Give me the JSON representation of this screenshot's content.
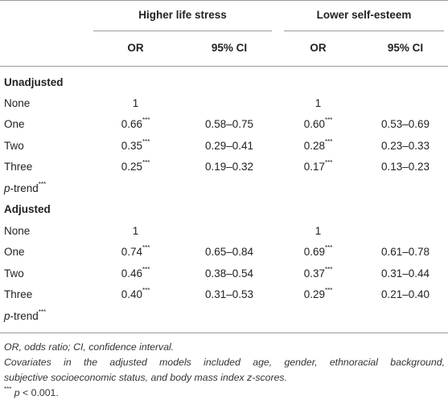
{
  "table": {
    "group_headers": [
      "Higher life stress",
      "Lower self-esteem"
    ],
    "col_headers": [
      "OR",
      "95% CI",
      "OR",
      "95% CI"
    ],
    "sections": [
      {
        "title": "Unadjusted",
        "rows": [
          {
            "label": "None",
            "or1": "1",
            "ci1": "",
            "or2": "1",
            "ci2": ""
          },
          {
            "label": "One",
            "or1": "0.66",
            "ci1": "0.58–0.75",
            "or2": "0.60",
            "ci2": "0.53–0.69"
          },
          {
            "label": "Two",
            "or1": "0.35",
            "ci1": "0.29–0.41",
            "or2": "0.28",
            "ci2": "0.23–0.33"
          },
          {
            "label": "Three",
            "or1": "0.25",
            "ci1": "0.19–0.32",
            "or2": "0.17",
            "ci2": "0.13–0.23"
          }
        ],
        "trend_label_p": "p",
        "trend_label_rest": "-trend"
      },
      {
        "title": "Adjusted",
        "rows": [
          {
            "label": "None",
            "or1": "1",
            "ci1": "",
            "or2": "1",
            "ci2": ""
          },
          {
            "label": "One",
            "or1": "0.74",
            "ci1": "0.65–0.84",
            "or2": "0.69",
            "ci2": "0.61–0.78"
          },
          {
            "label": "Two",
            "or1": "0.46",
            "ci1": "0.38–0.54",
            "or2": "0.37",
            "ci2": "0.31–0.44"
          },
          {
            "label": "Three",
            "or1": "0.40",
            "ci1": "0.31–0.53",
            "or2": "0.29",
            "ci2": "0.21–0.40"
          }
        ],
        "trend_label_p": "p",
        "trend_label_rest": "-trend"
      }
    ],
    "significance_mark": "***"
  },
  "footnotes": {
    "abbrev": "OR, odds ratio; CI, confidence interval.",
    "covariates_line1": "Covariates in the adjusted models included age, gender, ethnoracial background,",
    "covariates_line2": "subjective socioeconomic status, and body mass index z-scores.",
    "sig_mark": "***",
    "sig_p": "p",
    "sig_rest": " < 0.001."
  }
}
